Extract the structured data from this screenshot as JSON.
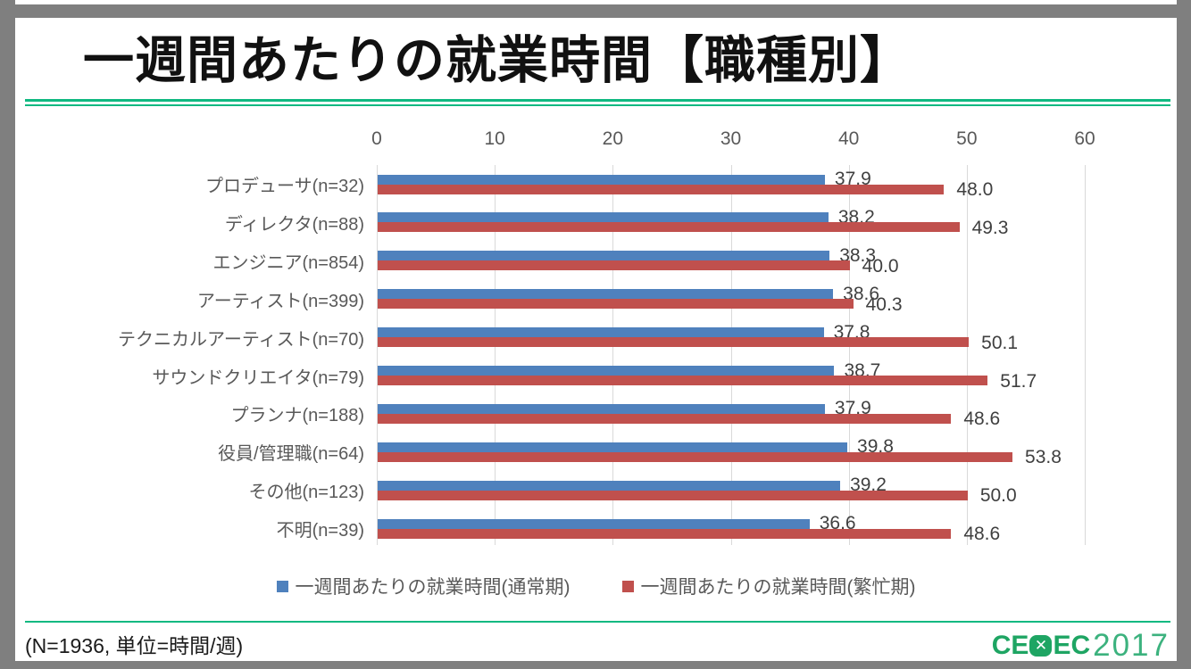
{
  "title": "一週間あたりの就業時間【職種別】",
  "footer": {
    "note": "(N=1936, 単位=時間/週)",
    "logo": {
      "prefix": "CE",
      "x_glyph": "✕",
      "suffix": "EC",
      "year": "2017"
    }
  },
  "legend": {
    "items": [
      {
        "label": "一週間あたりの就業時間(通常期)",
        "color": "#4f81bd"
      },
      {
        "label": "一週間あたりの就業時間(繁忙期)",
        "color": "#c0504d"
      }
    ]
  },
  "chart_data": {
    "type": "bar",
    "orientation": "horizontal",
    "title": "一週間あたりの就業時間【職種別】",
    "categories": [
      "プロデューサ(n=32)",
      "ディレクタ(n=88)",
      "エンジニア(n=854)",
      "アーティスト(n=399)",
      "テクニカルアーティスト(n=70)",
      "サウンドクリエイタ(n=79)",
      "プランナ(n=188)",
      "役員/管理職(n=64)",
      "その他(n=123)",
      "不明(n=39)"
    ],
    "series": [
      {
        "name": "一週間あたりの就業時間(通常期)",
        "color": "#4f81bd",
        "values": [
          37.9,
          38.2,
          38.3,
          38.6,
          37.8,
          38.7,
          37.9,
          39.8,
          39.2,
          36.6
        ]
      },
      {
        "name": "一週間あたりの就業時間(繁忙期)",
        "color": "#c0504d",
        "values": [
          48.0,
          49.3,
          40.0,
          40.3,
          50.1,
          51.7,
          48.6,
          53.8,
          50.0,
          48.6
        ]
      }
    ],
    "xlim": [
      0,
      60
    ],
    "xticks": [
      0,
      10,
      20,
      30,
      40,
      50,
      60
    ],
    "grid": true,
    "legend_position": "bottom",
    "value_label_decimals": 1
  },
  "colors": {
    "frame_gray": "#7f7f7f",
    "rule_green": "#10b981",
    "logo_green": "#1ea563",
    "gridline": "#d9d9d9",
    "axis_text": "#595959",
    "data_label_text": "#3f3f3f",
    "series_normal": "#4f81bd",
    "series_busy": "#c0504d"
  }
}
